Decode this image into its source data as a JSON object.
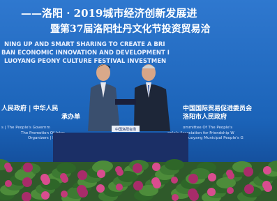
{
  "banner": {
    "title_lines": [
      "——洛阳 · 2019城市经济创新发展进",
      "暨第37届洛阳牡丹文化节投资贸易洽"
    ],
    "english_lines": [
      "NING UP AND SMART SHARING TO CREATE A BRI",
      "BAN ECONOMIC INNOVATION AND DEVELOPMENT I",
      "LUOYANG PEONY CULTURE FESTIVAL INVESTMEN"
    ],
    "organizer_lines": [
      "人民政府 | 中华人民",
      "中国国际贸易促进委员会",
      "承办单",
      "洛阳市人民政府"
    ],
    "small_lines": [
      "s | The People's Governm",
      "ommittee Of The People's",
      "The Promotion Of Inter",
      "ople's Association for Friendship W",
      "Organizers | He",
      "uoyang Municipal People's G"
    ]
  },
  "table_sign": "中国洛阳会场"
}
